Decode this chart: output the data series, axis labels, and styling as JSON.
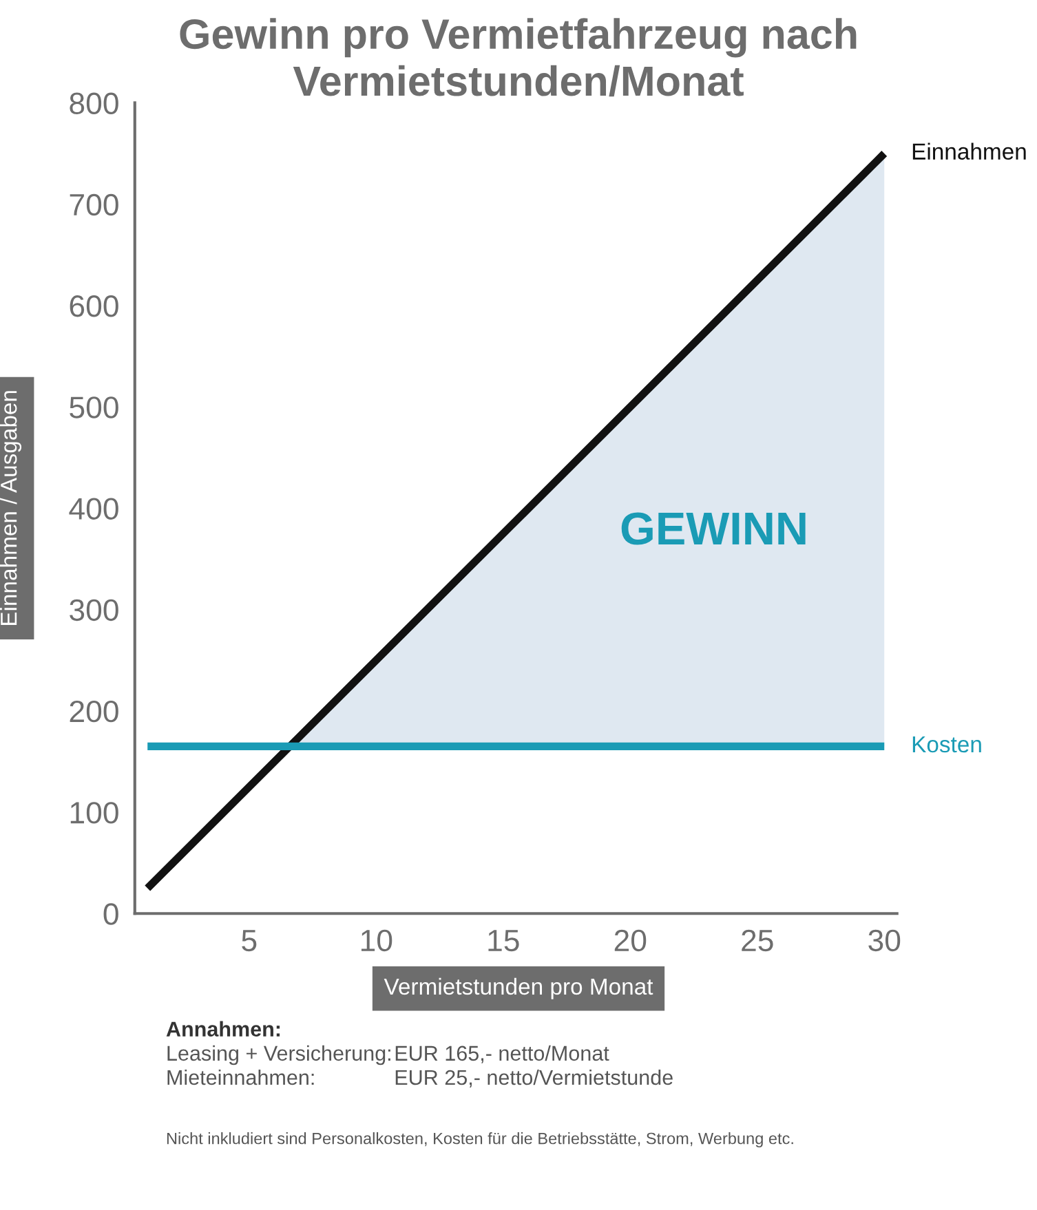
{
  "chart_data": {
    "type": "line",
    "title": "Gewinn pro Vermietfahrzeug nach\nVermietstunden/Monat",
    "xlabel": "Vermietstunden pro Monat",
    "ylabel": "Einnahmen / Ausgaben",
    "xlim": [
      0.5,
      30.5
    ],
    "ylim": [
      0,
      800
    ],
    "xticks": [
      5,
      10,
      15,
      20,
      25,
      30
    ],
    "yticks": [
      0,
      100,
      200,
      300,
      400,
      500,
      600,
      700,
      800
    ],
    "grid": false,
    "legend": false,
    "marker": "none",
    "line_style": "solid",
    "series": [
      {
        "name": "Einnahmen",
        "color": "#111111",
        "x": [
          1,
          6.6,
          30
        ],
        "values": [
          25,
          165,
          750
        ],
        "lower": [
          null,
          165,
          165
        ],
        "upper": [
          null,
          165,
          750
        ]
      },
      {
        "name": "Kosten",
        "color": "#1a9bb5",
        "x": [
          1,
          30
        ],
        "values": [
          165,
          165
        ]
      }
    ],
    "annotations": [
      "GEWINN",
      "Annahmen:",
      "Leasing + Versicherung:",
      "EUR 165,- netto/Monat",
      "Mieteinnahmen:",
      "EUR 25,- netto/Vermietstunde",
      "Nicht inkludiert sind Personalkosten, Kosten für die Betriebsstätte, Strom, Werbung etc."
    ]
  }
}
